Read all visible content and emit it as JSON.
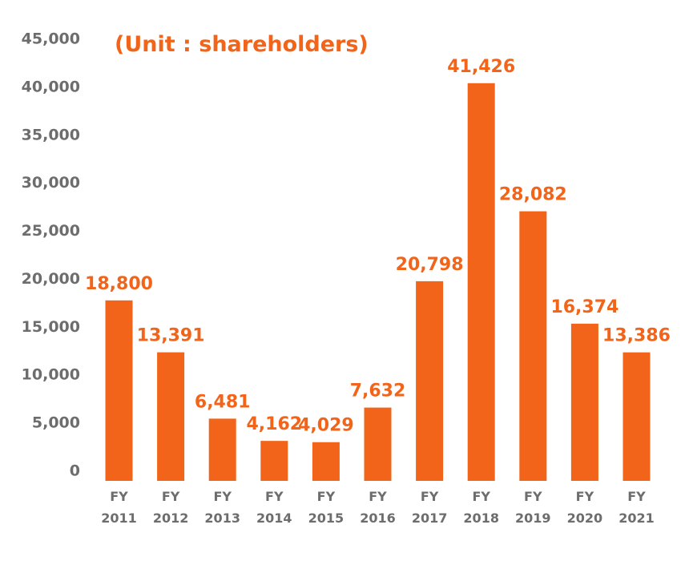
{
  "colors": {
    "accent": "#f26419",
    "axis_text": "#6d6d6d"
  },
  "chart_data": {
    "type": "bar",
    "unit_label": "(Unit : shareholders)",
    "categories": [
      [
        "FY",
        "2011"
      ],
      [
        "FY",
        "2012"
      ],
      [
        "FY",
        "2013"
      ],
      [
        "FY",
        "2014"
      ],
      [
        "FY",
        "2015"
      ],
      [
        "FY",
        "2016"
      ],
      [
        "FY",
        "2017"
      ],
      [
        "FY",
        "2018"
      ],
      [
        "FY",
        "2019"
      ],
      [
        "FY",
        "2020"
      ],
      [
        "FY",
        "2021"
      ]
    ],
    "values": [
      18800,
      13391,
      6481,
      4162,
      4029,
      7632,
      20798,
      41426,
      28082,
      16374,
      13386
    ],
    "data_labels": [
      "18,800",
      "13,391",
      "6,481",
      "4,162",
      "4,029",
      "7,632",
      "20,798",
      "41,426",
      "28,082",
      "16,374",
      "13,386"
    ],
    "ylim": [
      0,
      45000
    ],
    "yticks": [
      0,
      5000,
      10000,
      15000,
      20000,
      25000,
      30000,
      35000,
      40000,
      45000
    ],
    "ytick_labels": [
      "0",
      "5,000",
      "10,000",
      "15,000",
      "20,000",
      "25,000",
      "30,000",
      "35,000",
      "40,000",
      "45,000"
    ],
    "grid": false,
    "legend": "none"
  }
}
